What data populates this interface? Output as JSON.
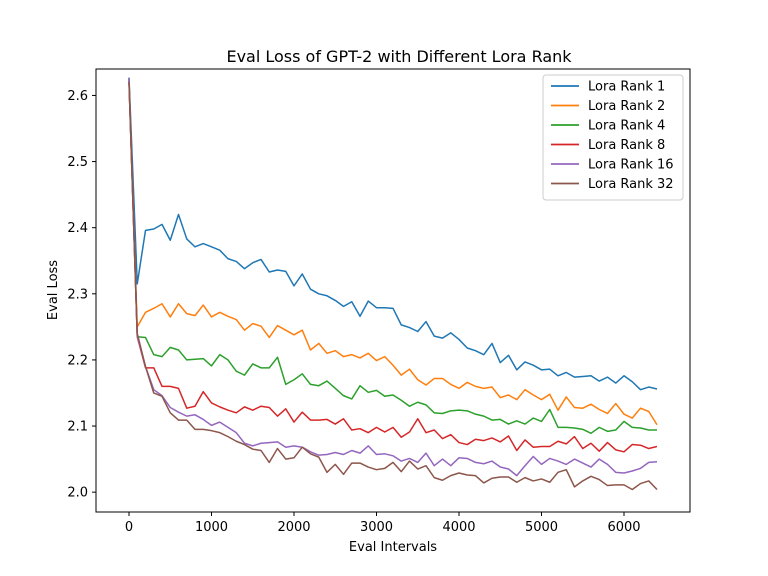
{
  "chart_data": {
    "type": "line",
    "title": "Eval Loss of GPT-2 with Different Lora Rank",
    "xlabel": "Eval Intervals",
    "ylabel": "Eval Loss",
    "xlim": [
      -400,
      6800
    ],
    "ylim": [
      1.97,
      2.64
    ],
    "xticks": [
      0,
      1000,
      2000,
      3000,
      4000,
      5000,
      6000
    ],
    "yticks": [
      2.0,
      2.1,
      2.2,
      2.3,
      2.4,
      2.5,
      2.6
    ],
    "ytick_labels": [
      "2.0",
      "2.1",
      "2.2",
      "2.3",
      "2.4",
      "2.5",
      "2.6"
    ],
    "grid": false,
    "legend_position": "top-right",
    "x": [
      0,
      100,
      200,
      300,
      400,
      500,
      600,
      700,
      800,
      900,
      1000,
      1100,
      1200,
      1300,
      1400,
      1500,
      1600,
      1700,
      1800,
      1900,
      2000,
      2100,
      2200,
      2300,
      2400,
      2500,
      2600,
      2700,
      2800,
      2900,
      3000,
      3100,
      3200,
      3300,
      3400,
      3500,
      3600,
      3700,
      3800,
      3900,
      4000,
      4100,
      4200,
      4300,
      4400,
      4500,
      4600,
      4700,
      4800,
      4900,
      5000,
      5100,
      5200,
      5300,
      5400,
      5500,
      5600,
      5700,
      5800,
      5900,
      6000,
      6100,
      6200,
      6300,
      6400
    ],
    "series": [
      {
        "name": "Lora Rank 1",
        "color": "#1f77b4",
        "values": [
          2.627,
          2.315,
          2.396,
          2.398,
          2.405,
          2.381,
          2.42,
          2.383,
          2.371,
          2.376,
          2.371,
          2.366,
          2.353,
          2.349,
          2.338,
          2.347,
          2.352,
          2.333,
          2.336,
          2.334,
          2.312,
          2.33,
          2.307,
          2.3,
          2.297,
          2.29,
          2.281,
          2.288,
          2.266,
          2.289,
          2.279,
          2.279,
          2.278,
          2.253,
          2.249,
          2.243,
          2.258,
          2.236,
          2.233,
          2.241,
          2.231,
          2.218,
          2.214,
          2.208,
          2.225,
          2.196,
          2.207,
          2.185,
          2.197,
          2.192,
          2.185,
          2.186,
          2.176,
          2.181,
          2.174,
          2.175,
          2.176,
          2.168,
          2.174,
          2.165,
          2.176,
          2.167,
          2.155,
          2.159,
          2.156
        ]
      },
      {
        "name": "Lora Rank 2",
        "color": "#ff7f0e",
        "values": [
          2.62,
          2.25,
          2.272,
          2.278,
          2.285,
          2.265,
          2.285,
          2.27,
          2.267,
          2.283,
          2.265,
          2.272,
          2.266,
          2.261,
          2.245,
          2.255,
          2.251,
          2.234,
          2.252,
          2.245,
          2.238,
          2.245,
          2.215,
          2.225,
          2.21,
          2.214,
          2.205,
          2.208,
          2.203,
          2.21,
          2.199,
          2.205,
          2.192,
          2.177,
          2.186,
          2.17,
          2.162,
          2.172,
          2.172,
          2.163,
          2.157,
          2.166,
          2.16,
          2.157,
          2.159,
          2.143,
          2.147,
          2.14,
          2.155,
          2.147,
          2.14,
          2.148,
          2.124,
          2.144,
          2.128,
          2.127,
          2.133,
          2.125,
          2.119,
          2.134,
          2.118,
          2.112,
          2.127,
          2.122,
          2.102
        ]
      },
      {
        "name": "Lora Rank 4",
        "color": "#2ca02c",
        "values": [
          2.625,
          2.235,
          2.234,
          2.208,
          2.205,
          2.219,
          2.215,
          2.2,
          2.201,
          2.202,
          2.191,
          2.208,
          2.2,
          2.183,
          2.177,
          2.194,
          2.188,
          2.188,
          2.204,
          2.163,
          2.17,
          2.179,
          2.163,
          2.161,
          2.168,
          2.157,
          2.146,
          2.141,
          2.161,
          2.151,
          2.154,
          2.145,
          2.147,
          2.139,
          2.13,
          2.136,
          2.132,
          2.12,
          2.119,
          2.123,
          2.124,
          2.123,
          2.118,
          2.115,
          2.109,
          2.11,
          2.103,
          2.108,
          2.103,
          2.112,
          2.107,
          2.125,
          2.098,
          2.098,
          2.097,
          2.095,
          2.089,
          2.098,
          2.092,
          2.094,
          2.107,
          2.098,
          2.097,
          2.094,
          2.094
        ]
      },
      {
        "name": "Lora Rank 8",
        "color": "#d62728",
        "values": [
          2.622,
          2.235,
          2.188,
          2.188,
          2.16,
          2.16,
          2.157,
          2.127,
          2.13,
          2.152,
          2.135,
          2.129,
          2.124,
          2.12,
          2.129,
          2.124,
          2.13,
          2.128,
          2.115,
          2.126,
          2.106,
          2.121,
          2.109,
          2.109,
          2.11,
          2.103,
          2.111,
          2.094,
          2.096,
          2.09,
          2.098,
          2.091,
          2.098,
          2.083,
          2.091,
          2.111,
          2.09,
          2.094,
          2.081,
          2.087,
          2.075,
          2.072,
          2.08,
          2.078,
          2.082,
          2.076,
          2.085,
          2.063,
          2.079,
          2.068,
          2.069,
          2.069,
          2.077,
          2.073,
          2.084,
          2.066,
          2.074,
          2.062,
          2.075,
          2.064,
          2.061,
          2.072,
          2.071,
          2.066,
          2.069
        ]
      },
      {
        "name": "Lora Rank 16",
        "color": "#9467bd",
        "values": [
          2.626,
          2.236,
          2.19,
          2.155,
          2.146,
          2.128,
          2.121,
          2.115,
          2.117,
          2.11,
          2.101,
          2.106,
          2.098,
          2.09,
          2.074,
          2.07,
          2.074,
          2.075,
          2.076,
          2.068,
          2.07,
          2.068,
          2.061,
          2.056,
          2.057,
          2.06,
          2.057,
          2.063,
          2.059,
          2.07,
          2.057,
          2.058,
          2.055,
          2.047,
          2.051,
          2.045,
          2.059,
          2.04,
          2.05,
          2.04,
          2.052,
          2.051,
          2.045,
          2.043,
          2.047,
          2.038,
          2.035,
          2.025,
          2.04,
          2.054,
          2.042,
          2.051,
          2.047,
          2.042,
          2.05,
          2.044,
          2.038,
          2.05,
          2.042,
          2.03,
          2.029,
          2.032,
          2.036,
          2.045,
          2.046
        ]
      },
      {
        "name": "Lora Rank 32",
        "color": "#8c564b",
        "values": [
          2.62,
          2.24,
          2.19,
          2.15,
          2.145,
          2.12,
          2.109,
          2.109,
          2.095,
          2.095,
          2.093,
          2.09,
          2.084,
          2.077,
          2.072,
          2.065,
          2.063,
          2.045,
          2.066,
          2.05,
          2.052,
          2.068,
          2.058,
          2.053,
          2.03,
          2.042,
          2.027,
          2.044,
          2.044,
          2.038,
          2.034,
          2.036,
          2.045,
          2.031,
          2.047,
          2.035,
          2.04,
          2.022,
          2.018,
          2.025,
          2.029,
          2.026,
          2.025,
          2.014,
          2.021,
          2.023,
          2.023,
          2.015,
          2.022,
          2.017,
          2.02,
          2.015,
          2.03,
          2.034,
          2.008,
          2.017,
          2.024,
          2.019,
          2.01,
          2.011,
          2.011,
          2.004,
          2.013,
          2.017,
          2.004
        ]
      }
    ]
  }
}
